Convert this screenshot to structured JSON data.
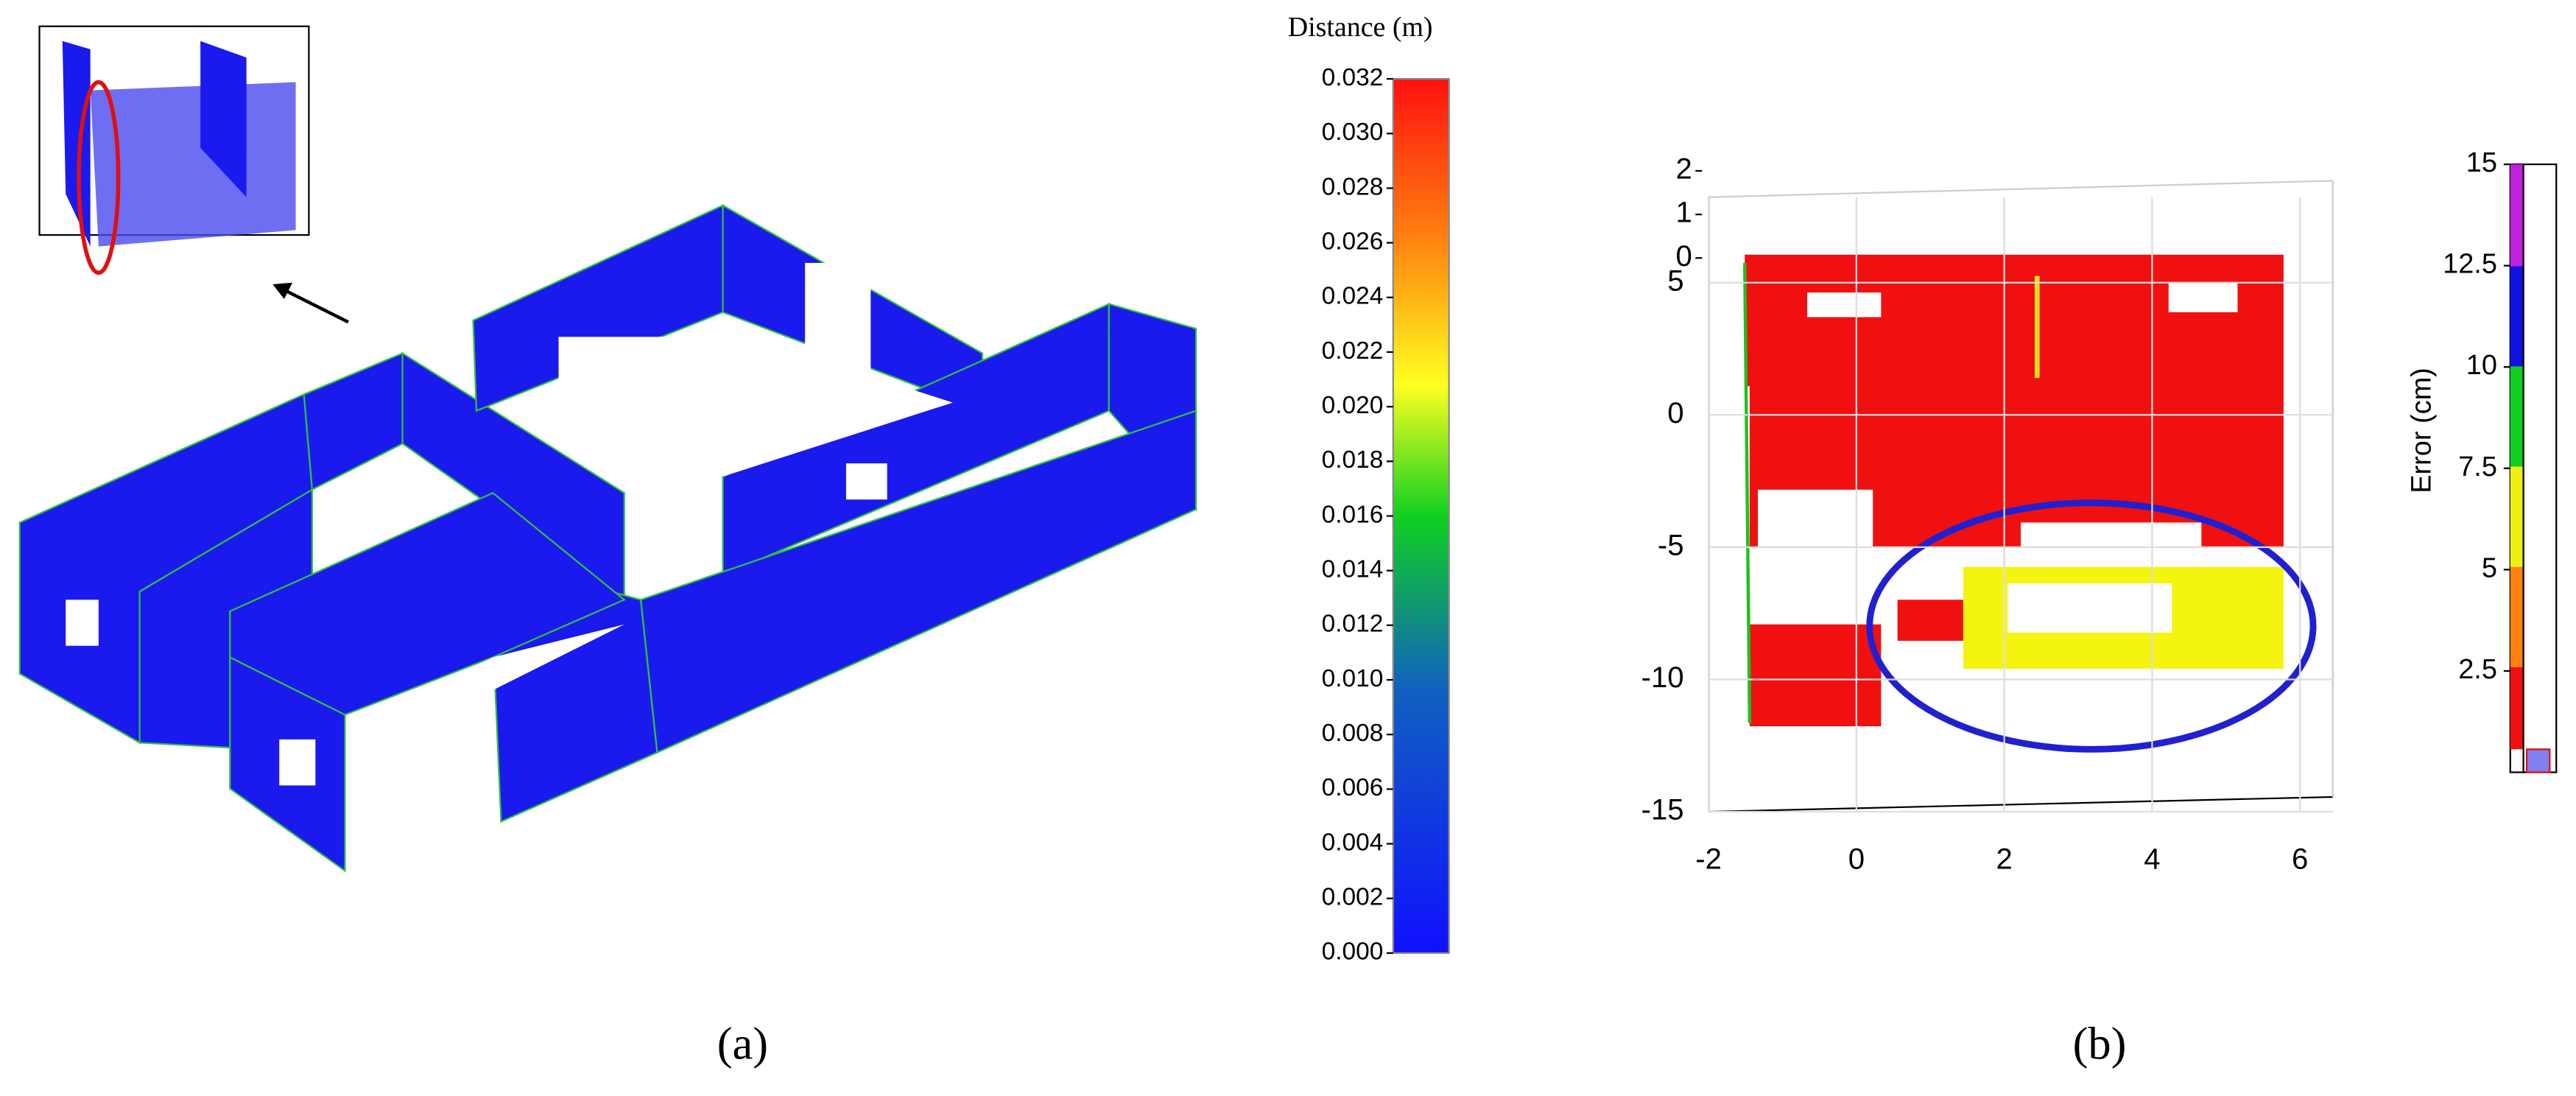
{
  "panel_a": {
    "colorbar": {
      "title": "Distance (m)",
      "lim": [
        0,
        0.032
      ],
      "ticks": [
        {
          "value": 0,
          "label": "0.000"
        },
        {
          "value": 0.002,
          "label": "0.002"
        },
        {
          "value": 0.004,
          "label": "0.004"
        },
        {
          "value": 0.006,
          "label": "0.006"
        },
        {
          "value": 0.008,
          "label": "0.008"
        },
        {
          "value": 0.01,
          "label": "0.010"
        },
        {
          "value": 0.012,
          "label": "0.012"
        },
        {
          "value": 0.014,
          "label": "0.014"
        },
        {
          "value": 0.016,
          "label": "0.016"
        },
        {
          "value": 0.018,
          "label": "0.018"
        },
        {
          "value": 0.02,
          "label": "0.020"
        },
        {
          "value": 0.022,
          "label": "0.022"
        },
        {
          "value": 0.024,
          "label": "0.024"
        },
        {
          "value": 0.026,
          "label": "0.026"
        },
        {
          "value": 0.028,
          "label": "0.028"
        },
        {
          "value": 0.03,
          "label": "0.030"
        },
        {
          "value": 0.032,
          "label": "0.032"
        }
      ]
    },
    "caption": "(a)"
  },
  "panel_b": {
    "plot": {
      "xlim": [
        -2,
        6
      ],
      "xticks": [
        -2,
        0,
        2,
        4,
        6
      ],
      "ylim": [
        -15,
        5
      ],
      "yticks": [
        5,
        0,
        -5,
        -10,
        -15
      ],
      "zticks": [
        2,
        1,
        0
      ]
    },
    "colorbar": {
      "title": "Error (cm)",
      "lim": [
        0,
        15
      ],
      "ticks": [
        15,
        12.5,
        10,
        7.5,
        5,
        2.5
      ]
    },
    "caption": "(b)"
  }
}
